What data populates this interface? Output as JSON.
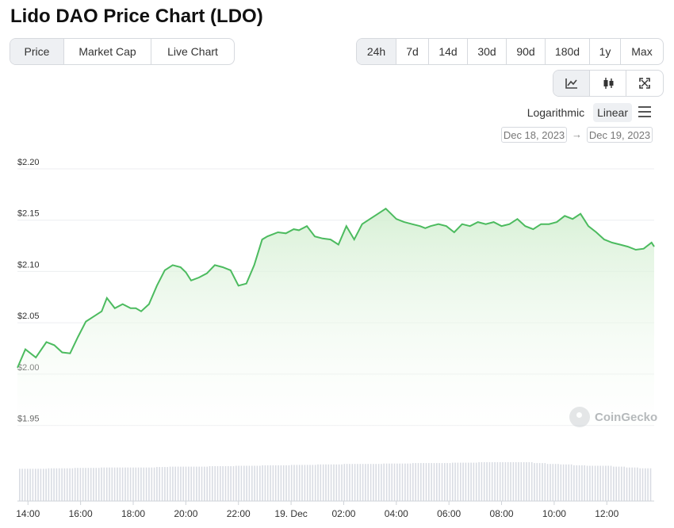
{
  "page": {
    "title": "Lido DAO Price Chart (LDO)"
  },
  "metric_tabs": [
    {
      "label": "Price",
      "active": true
    },
    {
      "label": "Market Cap",
      "active": false
    },
    {
      "label": "Live Chart",
      "active": false
    }
  ],
  "range_tabs": [
    {
      "label": "24h",
      "active": true
    },
    {
      "label": "7d",
      "active": false
    },
    {
      "label": "14d",
      "active": false
    },
    {
      "label": "30d",
      "active": false
    },
    {
      "label": "90d",
      "active": false
    },
    {
      "label": "180d",
      "active": false
    },
    {
      "label": "1y",
      "active": false
    },
    {
      "label": "Max",
      "active": false
    }
  ],
  "view_tabs": [
    {
      "icon": "line-chart-icon",
      "active": true
    },
    {
      "icon": "candlestick-icon",
      "active": false
    },
    {
      "icon": "fullscreen-icon",
      "active": false
    }
  ],
  "scale": {
    "log_label": "Logarithmic",
    "linear_label": "Linear",
    "active": "Linear"
  },
  "date_range": {
    "from": "Dec 18, 2023",
    "to": "Dec 19, 2023",
    "arrow": "→"
  },
  "watermark": {
    "text": "CoinGecko"
  },
  "colors": {
    "line": "#4cbb5f",
    "fill_top": "#d4efd2",
    "grid": "#eceef0",
    "volume": "#d9dce3",
    "active_tab": "#eef0f3"
  },
  "chart_data": {
    "type": "area",
    "title": "",
    "xlabel": "",
    "ylabel": "",
    "ylim": [
      1.935,
      2.2
    ],
    "y_ticks": [
      "$2.20",
      "$2.15",
      "$2.10",
      "$2.05",
      "$2.00",
      "$1.95"
    ],
    "y_tick_values": [
      2.2,
      2.15,
      2.1,
      2.05,
      2.0,
      1.95
    ],
    "x_ticks": [
      "14:00",
      "16:00",
      "18:00",
      "20:00",
      "22:00",
      "19. Dec",
      "02:00",
      "04:00",
      "06:00",
      "08:00",
      "10:00",
      "12:00"
    ],
    "x_tick_hours": [
      14,
      16,
      18,
      20,
      22,
      24,
      26,
      28,
      30,
      32,
      34,
      36
    ],
    "xlim_hours": [
      13.6,
      37.8
    ],
    "series": [
      {
        "x_hours": [
          13.6,
          13.9,
          14.3,
          14.7,
          15.0,
          15.3,
          15.6,
          15.9,
          16.2,
          16.5,
          16.8,
          17.0,
          17.3,
          17.6,
          17.9,
          18.1,
          18.3,
          18.6,
          18.9,
          19.2,
          19.5,
          19.8,
          20.0,
          20.2,
          20.5,
          20.8,
          21.1,
          21.4,
          21.7,
          22.0,
          22.3,
          22.6,
          22.9,
          23.1,
          23.3,
          23.5,
          23.8,
          24.1,
          24.3,
          24.6,
          24.9,
          25.2,
          25.5,
          25.8,
          26.1,
          26.4,
          26.7,
          27.0,
          27.3,
          27.6,
          27.8,
          28.0,
          28.3,
          28.6,
          28.9,
          29.1,
          29.3,
          29.6,
          29.9,
          30.2,
          30.5,
          30.8,
          31.1,
          31.4,
          31.7,
          32.0,
          32.3,
          32.6,
          32.9,
          33.2,
          33.5,
          33.8,
          34.1,
          34.4,
          34.7,
          35.0,
          35.3,
          35.6,
          35.9,
          36.2,
          36.5,
          36.8,
          37.1,
          37.4,
          37.7,
          37.8
        ],
        "values": [
          2.0,
          2.018,
          2.01,
          2.025,
          2.022,
          2.015,
          2.014,
          2.03,
          2.045,
          2.05,
          2.055,
          2.068,
          2.058,
          2.062,
          2.058,
          2.058,
          2.055,
          2.062,
          2.08,
          2.095,
          2.1,
          2.098,
          2.093,
          2.085,
          2.088,
          2.092,
          2.1,
          2.098,
          2.095,
          2.08,
          2.082,
          2.1,
          2.125,
          2.128,
          2.13,
          2.132,
          2.131,
          2.135,
          2.134,
          2.138,
          2.128,
          2.126,
          2.125,
          2.12,
          2.138,
          2.125,
          2.14,
          2.145,
          2.15,
          2.155,
          2.15,
          2.145,
          2.142,
          2.14,
          2.138,
          2.136,
          2.138,
          2.14,
          2.138,
          2.132,
          2.14,
          2.138,
          2.142,
          2.14,
          2.142,
          2.138,
          2.14,
          2.145,
          2.138,
          2.135,
          2.14,
          2.14,
          2.142,
          2.148,
          2.145,
          2.15,
          2.138,
          2.132,
          2.125,
          2.122,
          2.12,
          2.118,
          2.115,
          2.116,
          2.122,
          2.118
        ]
      }
    ],
    "volume": {
      "relative_levels": [
        0.85,
        0.85,
        0.86,
        0.86,
        0.87,
        0.87,
        0.88,
        0.88,
        0.88,
        0.88,
        0.89,
        0.9,
        0.9,
        0.9,
        0.91,
        0.91,
        0.92,
        0.92,
        0.93,
        0.93,
        0.94,
        0.94,
        0.95,
        0.95,
        0.96,
        0.96,
        0.96,
        0.97,
        0.97,
        0.98,
        0.98,
        0.98,
        0.99,
        0.99,
        1.0,
        1.0,
        1.0,
        1.0,
        0.98,
        0.96,
        0.95,
        0.93,
        0.92,
        0.92,
        0.9,
        0.88,
        0.86
      ]
    }
  }
}
